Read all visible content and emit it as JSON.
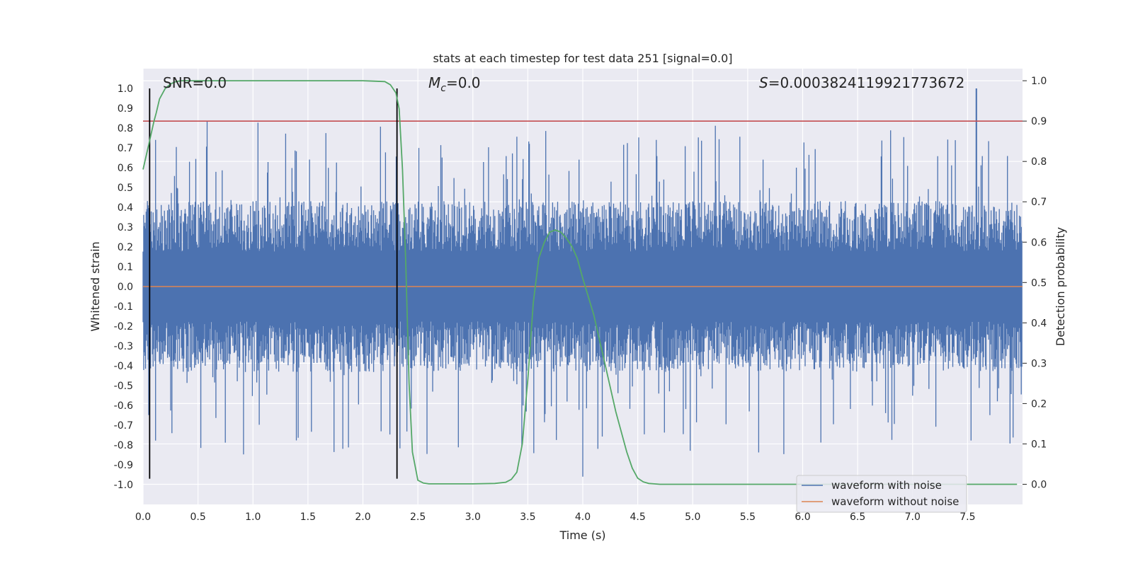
{
  "chart_data": {
    "type": "line",
    "title": "stats at each timestep for test data 251 [signal=0.0]",
    "xlabel": "Time (s)",
    "ylabel": "Whitened strain",
    "y2label": "Detection probability",
    "xlim": [
      0.0,
      8.0
    ],
    "ylim": [
      -1.1,
      1.1
    ],
    "y2lim": [
      -0.05,
      1.03
    ],
    "xticks": [
      "0.0",
      "0.5",
      "1.0",
      "1.5",
      "2.0",
      "2.5",
      "3.0",
      "3.5",
      "4.0",
      "4.5",
      "5.0",
      "5.5",
      "6.0",
      "6.5",
      "7.0",
      "7.5"
    ],
    "yticks": [
      "1.0",
      "0.9",
      "0.8",
      "0.7",
      "0.6",
      "0.5",
      "0.4",
      "0.3",
      "0.2",
      "0.1",
      "0.0",
      "-0.1",
      "-0.2",
      "-0.3",
      "-0.4",
      "-0.5",
      "-0.6",
      "-0.7",
      "-0.8",
      "-0.9",
      "-1.0"
    ],
    "y2ticks": [
      "1.0",
      "0.9",
      "0.8",
      "0.7",
      "0.6",
      "0.5",
      "0.4",
      "0.3",
      "0.2",
      "0.1",
      "0.0"
    ],
    "annotations": {
      "snr": "SNR=0.0",
      "mc_symbol": "M",
      "mc_sub": "c",
      "mc_value": "=0.0",
      "s_symbol": "S",
      "s_value": "=0.0003824119921773672"
    },
    "threshold": {
      "y2": 0.9,
      "color": "#c44e52"
    },
    "vlines": [
      {
        "x": 0.06,
        "ymin": -0.97,
        "ymax": 1.0
      },
      {
        "x": 2.31,
        "ymin": -0.97,
        "ymax": 1.0
      }
    ],
    "series": [
      {
        "name": "waveform with noise",
        "axis": "y",
        "color": "#4c72b0",
        "envelope": {
          "typical_abs": 0.32,
          "peak_pos": 1.0,
          "peak_neg": -0.96
        }
      },
      {
        "name": "waveform without noise",
        "axis": "y",
        "color": "#dd8452",
        "values": 0.0
      },
      {
        "axis": "y2",
        "color": "#55a868",
        "x": [
          0.0,
          0.05,
          0.1,
          0.12,
          0.15,
          0.2,
          0.25,
          0.3,
          0.35,
          0.4,
          0.5,
          1.0,
          1.5,
          2.0,
          2.1,
          2.2,
          2.25,
          2.3,
          2.33,
          2.36,
          2.39,
          2.42,
          2.45,
          2.5,
          2.55,
          2.6,
          2.8,
          3.0,
          3.2,
          3.3,
          3.35,
          3.4,
          3.45,
          3.5,
          3.55,
          3.6,
          3.65,
          3.7,
          3.75,
          3.8,
          3.85,
          3.9,
          3.95,
          4.0,
          4.1,
          4.2,
          4.3,
          4.4,
          4.45,
          4.5,
          4.55,
          4.6,
          4.65,
          4.7,
          5.0,
          6.0,
          7.0,
          7.5,
          7.95
        ],
        "values": [
          0.78,
          0.84,
          0.9,
          0.92,
          0.955,
          0.98,
          0.992,
          0.998,
          1.0,
          1.0,
          1.0,
          1.0,
          1.0,
          1.0,
          0.999,
          0.998,
          0.99,
          0.97,
          0.93,
          0.78,
          0.55,
          0.25,
          0.08,
          0.01,
          0.003,
          0.001,
          0.001,
          0.001,
          0.002,
          0.005,
          0.012,
          0.03,
          0.1,
          0.26,
          0.45,
          0.56,
          0.6,
          0.625,
          0.63,
          0.625,
          0.61,
          0.59,
          0.56,
          0.51,
          0.42,
          0.3,
          0.18,
          0.08,
          0.04,
          0.015,
          0.006,
          0.002,
          0.001,
          0.0,
          0.0,
          0.0,
          0.0,
          0.0,
          0.0
        ]
      }
    ],
    "legend": {
      "placement": "lower-right",
      "entries": [
        "waveform with noise",
        "waveform without noise"
      ]
    },
    "grid": true
  }
}
